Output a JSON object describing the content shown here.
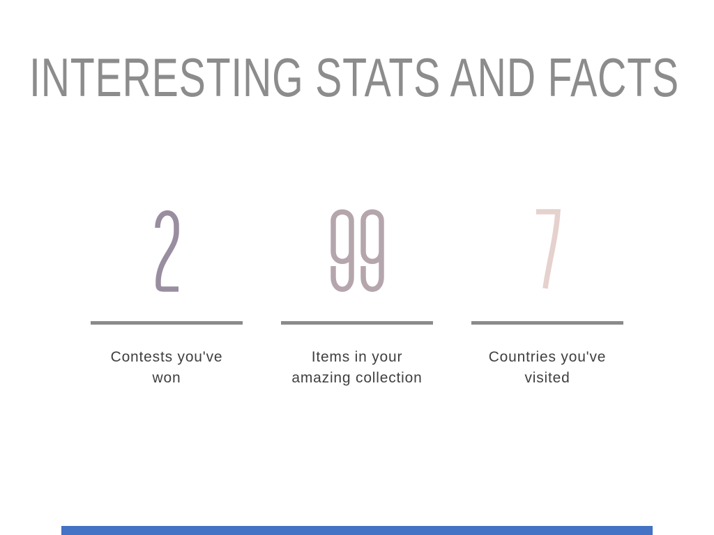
{
  "slide": {
    "title": "INTERESTING STATS AND FACTS",
    "title_color": "#8C8C8C",
    "divider_color": "#8A8A8A",
    "caption_color": "#3F3F3F",
    "footer_bar_color": "#4472C4",
    "stats": [
      {
        "value": "2",
        "color": "#998DA0",
        "lines": [
          "Contests you've",
          "won"
        ]
      },
      {
        "value": "99",
        "color": "#B5A5AC",
        "lines": [
          "Items in your",
          "amazing collection"
        ]
      },
      {
        "value": "7",
        "color": "#E5D1CD",
        "lines": [
          "Countries you've",
          "visited"
        ]
      }
    ]
  }
}
